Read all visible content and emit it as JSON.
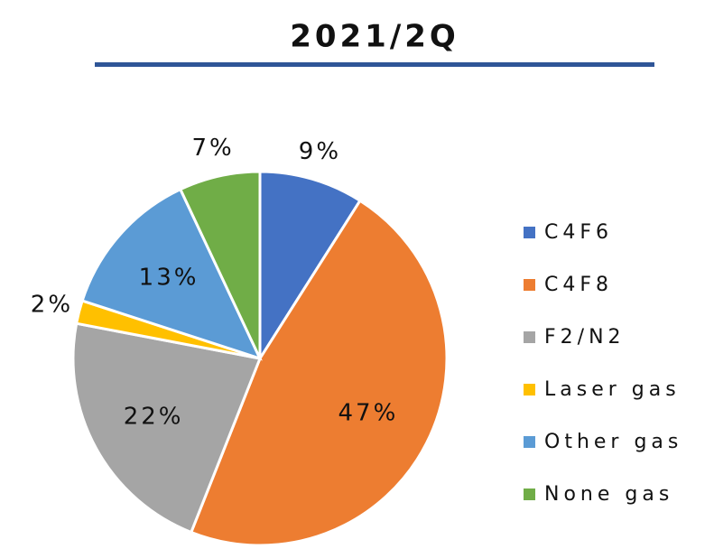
{
  "chart_data": {
    "type": "pie",
    "title": "2021/2Q",
    "categories": [
      "C4F6",
      "C4F8",
      "F2/N2",
      "Laser gas",
      "Other gas",
      "None gas"
    ],
    "values": [
      9,
      47,
      22,
      2,
      13,
      7
    ],
    "value_labels": [
      "9%",
      "47%",
      "22%",
      "2%",
      "13%",
      "7%"
    ],
    "colors": [
      "#4472c4",
      "#ed7d31",
      "#a5a5a5",
      "#ffc000",
      "#5b9bd5",
      "#70ad47"
    ],
    "legend": "right"
  }
}
